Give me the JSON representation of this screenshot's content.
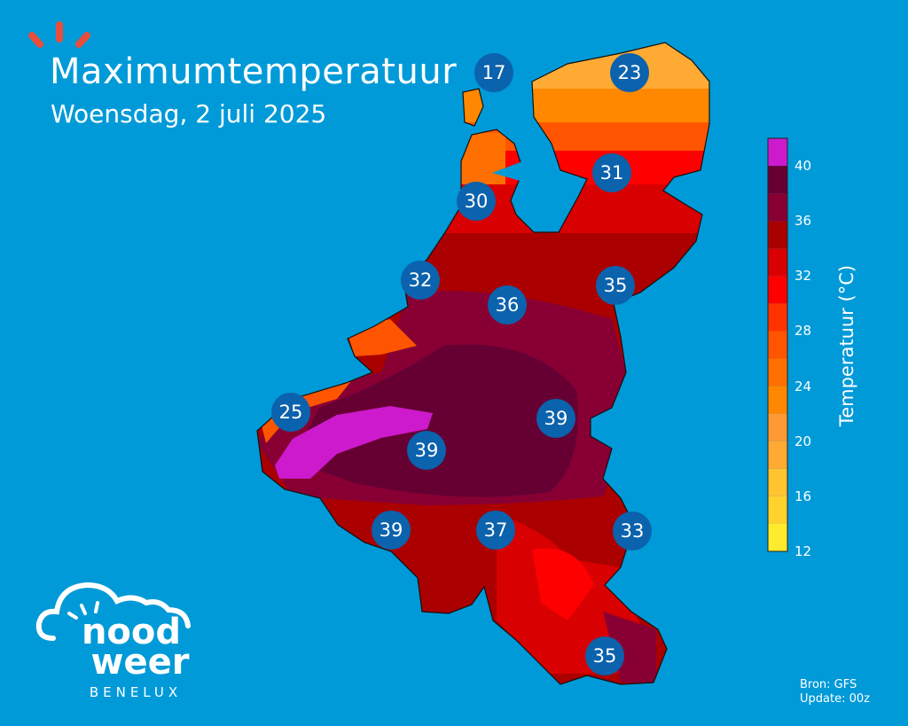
{
  "header": {
    "title": "Maximumtemperatuur",
    "subtitle": "Woensdag, 2 juli 2025"
  },
  "colorbar": {
    "label": "Temperatuur (°C)",
    "ticks": [
      "12",
      "16",
      "20",
      "24",
      "28",
      "32",
      "36",
      "40"
    ],
    "bands": [
      {
        "from": 12,
        "to": 14,
        "color": "#ffeb2e"
      },
      {
        "from": 14,
        "to": 16,
        "color": "#ffd22e"
      },
      {
        "from": 16,
        "to": 18,
        "color": "#ffc430"
      },
      {
        "from": 18,
        "to": 20,
        "color": "#ffaa33"
      },
      {
        "from": 20,
        "to": 22,
        "color": "#ff9933"
      },
      {
        "from": 22,
        "to": 24,
        "color": "#ff8800"
      },
      {
        "from": 24,
        "to": 26,
        "color": "#ff7000"
      },
      {
        "from": 26,
        "to": 28,
        "color": "#ff5500"
      },
      {
        "from": 28,
        "to": 30,
        "color": "#ff3300"
      },
      {
        "from": 30,
        "to": 32,
        "color": "#ff0000"
      },
      {
        "from": 32,
        "to": 34,
        "color": "#d80000"
      },
      {
        "from": 34,
        "to": 36,
        "color": "#aa0000"
      },
      {
        "from": 36,
        "to": 38,
        "color": "#880033"
      },
      {
        "from": 38,
        "to": 40,
        "color": "#660033"
      },
      {
        "from": 40,
        "to": 42,
        "color": "#cc1acc"
      }
    ]
  },
  "stations": [
    "17",
    "23",
    "31",
    "30",
    "32",
    "35",
    "36",
    "25",
    "39",
    "39",
    "39",
    "37",
    "33",
    "35"
  ],
  "colors": {
    "background": "#009ad8",
    "bubble": "#0b62ad",
    "rays": "#e84e3a"
  },
  "logo": {
    "line1": "nood",
    "line2": "weer",
    "line3": "BENELUX"
  },
  "source": {
    "line1": "Bron: GFS",
    "line2": "Update: 00z"
  }
}
